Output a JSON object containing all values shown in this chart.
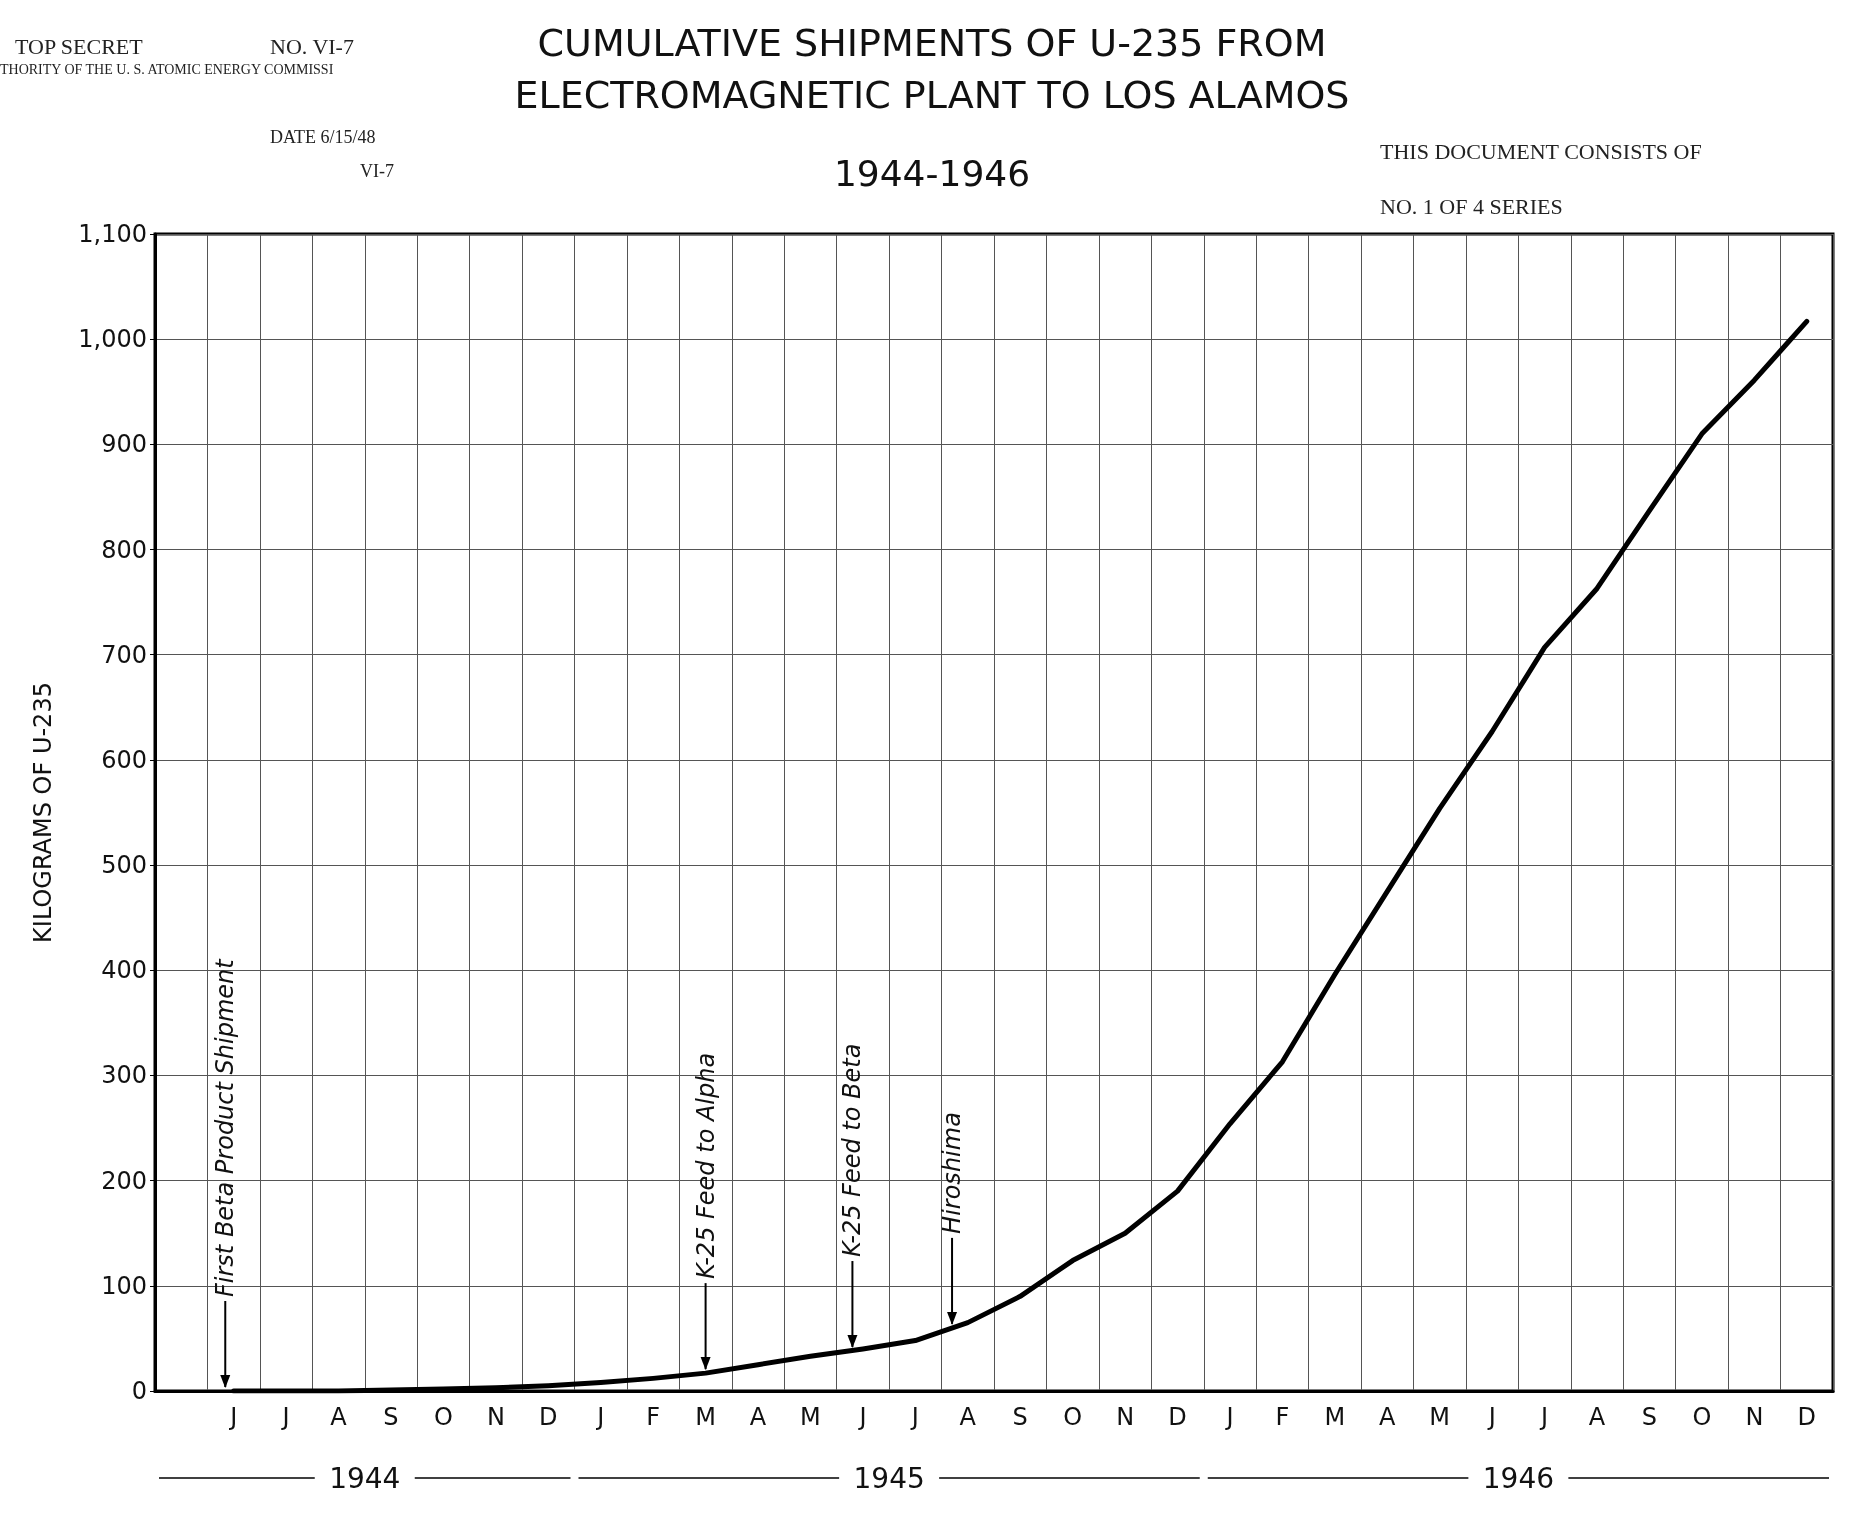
{
  "chart_data": {
    "type": "line",
    "title": "CUMULATIVE SHIPMENTS OF U-235 FROM\nELECTROMAGNETIC PLANT TO LOS ALAMOS",
    "subtitle": "1944-1946",
    "ylabel": "KILOGRAMS OF U-235",
    "categories": [
      null,
      "J",
      "J",
      "A",
      "S",
      "O",
      "N",
      "D",
      "J",
      "F",
      "M",
      "A",
      "M",
      "J",
      "J",
      "A",
      "S",
      "O",
      "N",
      "D",
      "J",
      "F",
      "M",
      "A",
      "M",
      "J",
      "J",
      "A",
      "S",
      "O",
      "N",
      "D"
    ],
    "series": [
      {
        "color": "#000000",
        "values": [
          null,
          0,
          0,
          0,
          1,
          2,
          3,
          5,
          8,
          12,
          17,
          25,
          33,
          40,
          48,
          65,
          90,
          124,
          150,
          190,
          254,
          313,
          396,
          475,
          554,
          627,
          707,
          763,
          837,
          910,
          961,
          1017
        ]
      }
    ],
    "ylim": [
      0,
      1100
    ],
    "yticks": [
      0,
      100,
      200,
      300,
      400,
      500,
      600,
      700,
      800,
      900,
      {
        "value": 1000,
        "label": "1,000"
      },
      {
        "value": 1100,
        "label": "1,100"
      }
    ],
    "grid": true,
    "marker": "none",
    "line_style": "solid",
    "annotations": [
      "TOP SECRET",
      "NO. VI-7",
      "THORITY OF THE U. S. ATOMIC ENERGY COMMISSI",
      "DATE 6/15/48",
      "VI-7",
      "THIS DOCUMENT CONSISTS OF",
      "NO. 1 OF 4 SERIES",
      "1944",
      "1945",
      "1946",
      "First Beta Product Shipment",
      {
        "text": "K-25 Feed to Alpha",
        "x": "M",
        "y": 17
      },
      {
        "text": "K-25 Feed to Beta",
        "y": 38
      },
      {
        "text": "Hiroshima",
        "y": 60
      }
    ]
  }
}
